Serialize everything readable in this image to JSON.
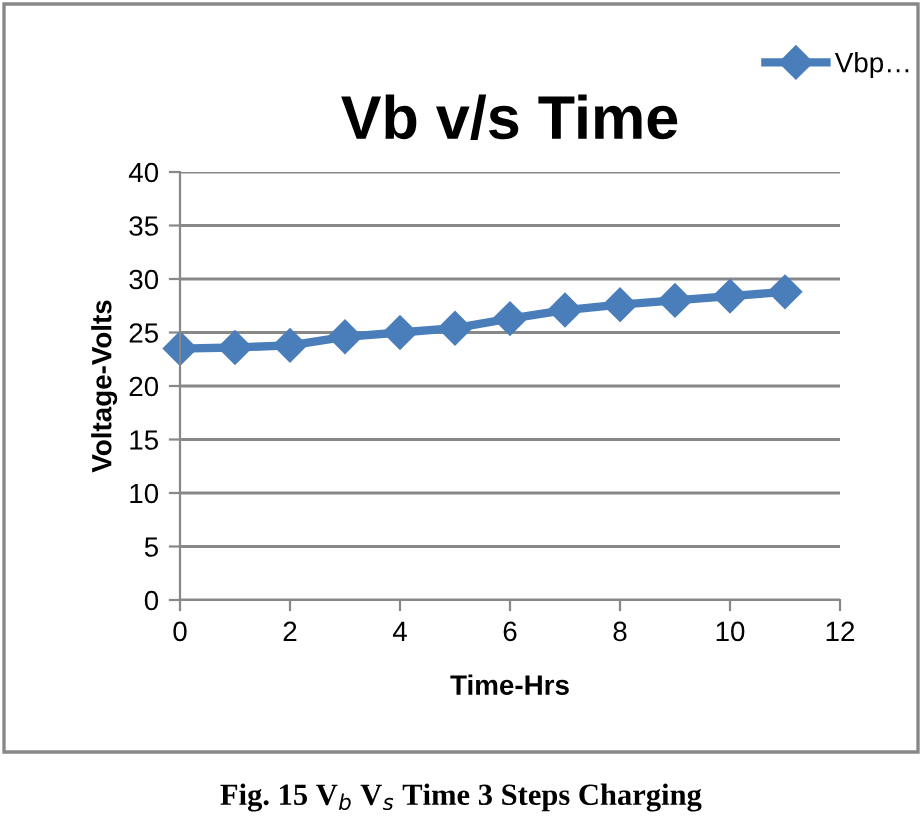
{
  "chart_data": {
    "type": "line",
    "title": "Vb v/s Time",
    "xlabel": "Time-Hrs",
    "ylabel": "Voltage-Volts",
    "x": [
      0,
      1,
      2,
      3,
      4,
      5,
      6,
      7,
      8,
      9,
      10,
      11
    ],
    "series": [
      {
        "name": "Vbp…",
        "color": "#4a7ebb",
        "values": [
          23.5,
          23.6,
          23.8,
          24.6,
          25.0,
          25.4,
          26.3,
          27.1,
          27.6,
          28.0,
          28.4,
          28.8
        ]
      }
    ],
    "xlim": [
      0,
      12
    ],
    "xticks": [
      0,
      2,
      4,
      6,
      8,
      10,
      12
    ],
    "ylim": [
      0,
      40
    ],
    "yticks": [
      0,
      5,
      10,
      15,
      20,
      25,
      30,
      35,
      40
    ],
    "grid": "y",
    "legend": "top right",
    "marker": "diamond",
    "line_style": "solid",
    "annotations": [
      "Fig. 15 V$_{b}$ V$_{s}$ Time 3 Steps Charging"
    ]
  }
}
